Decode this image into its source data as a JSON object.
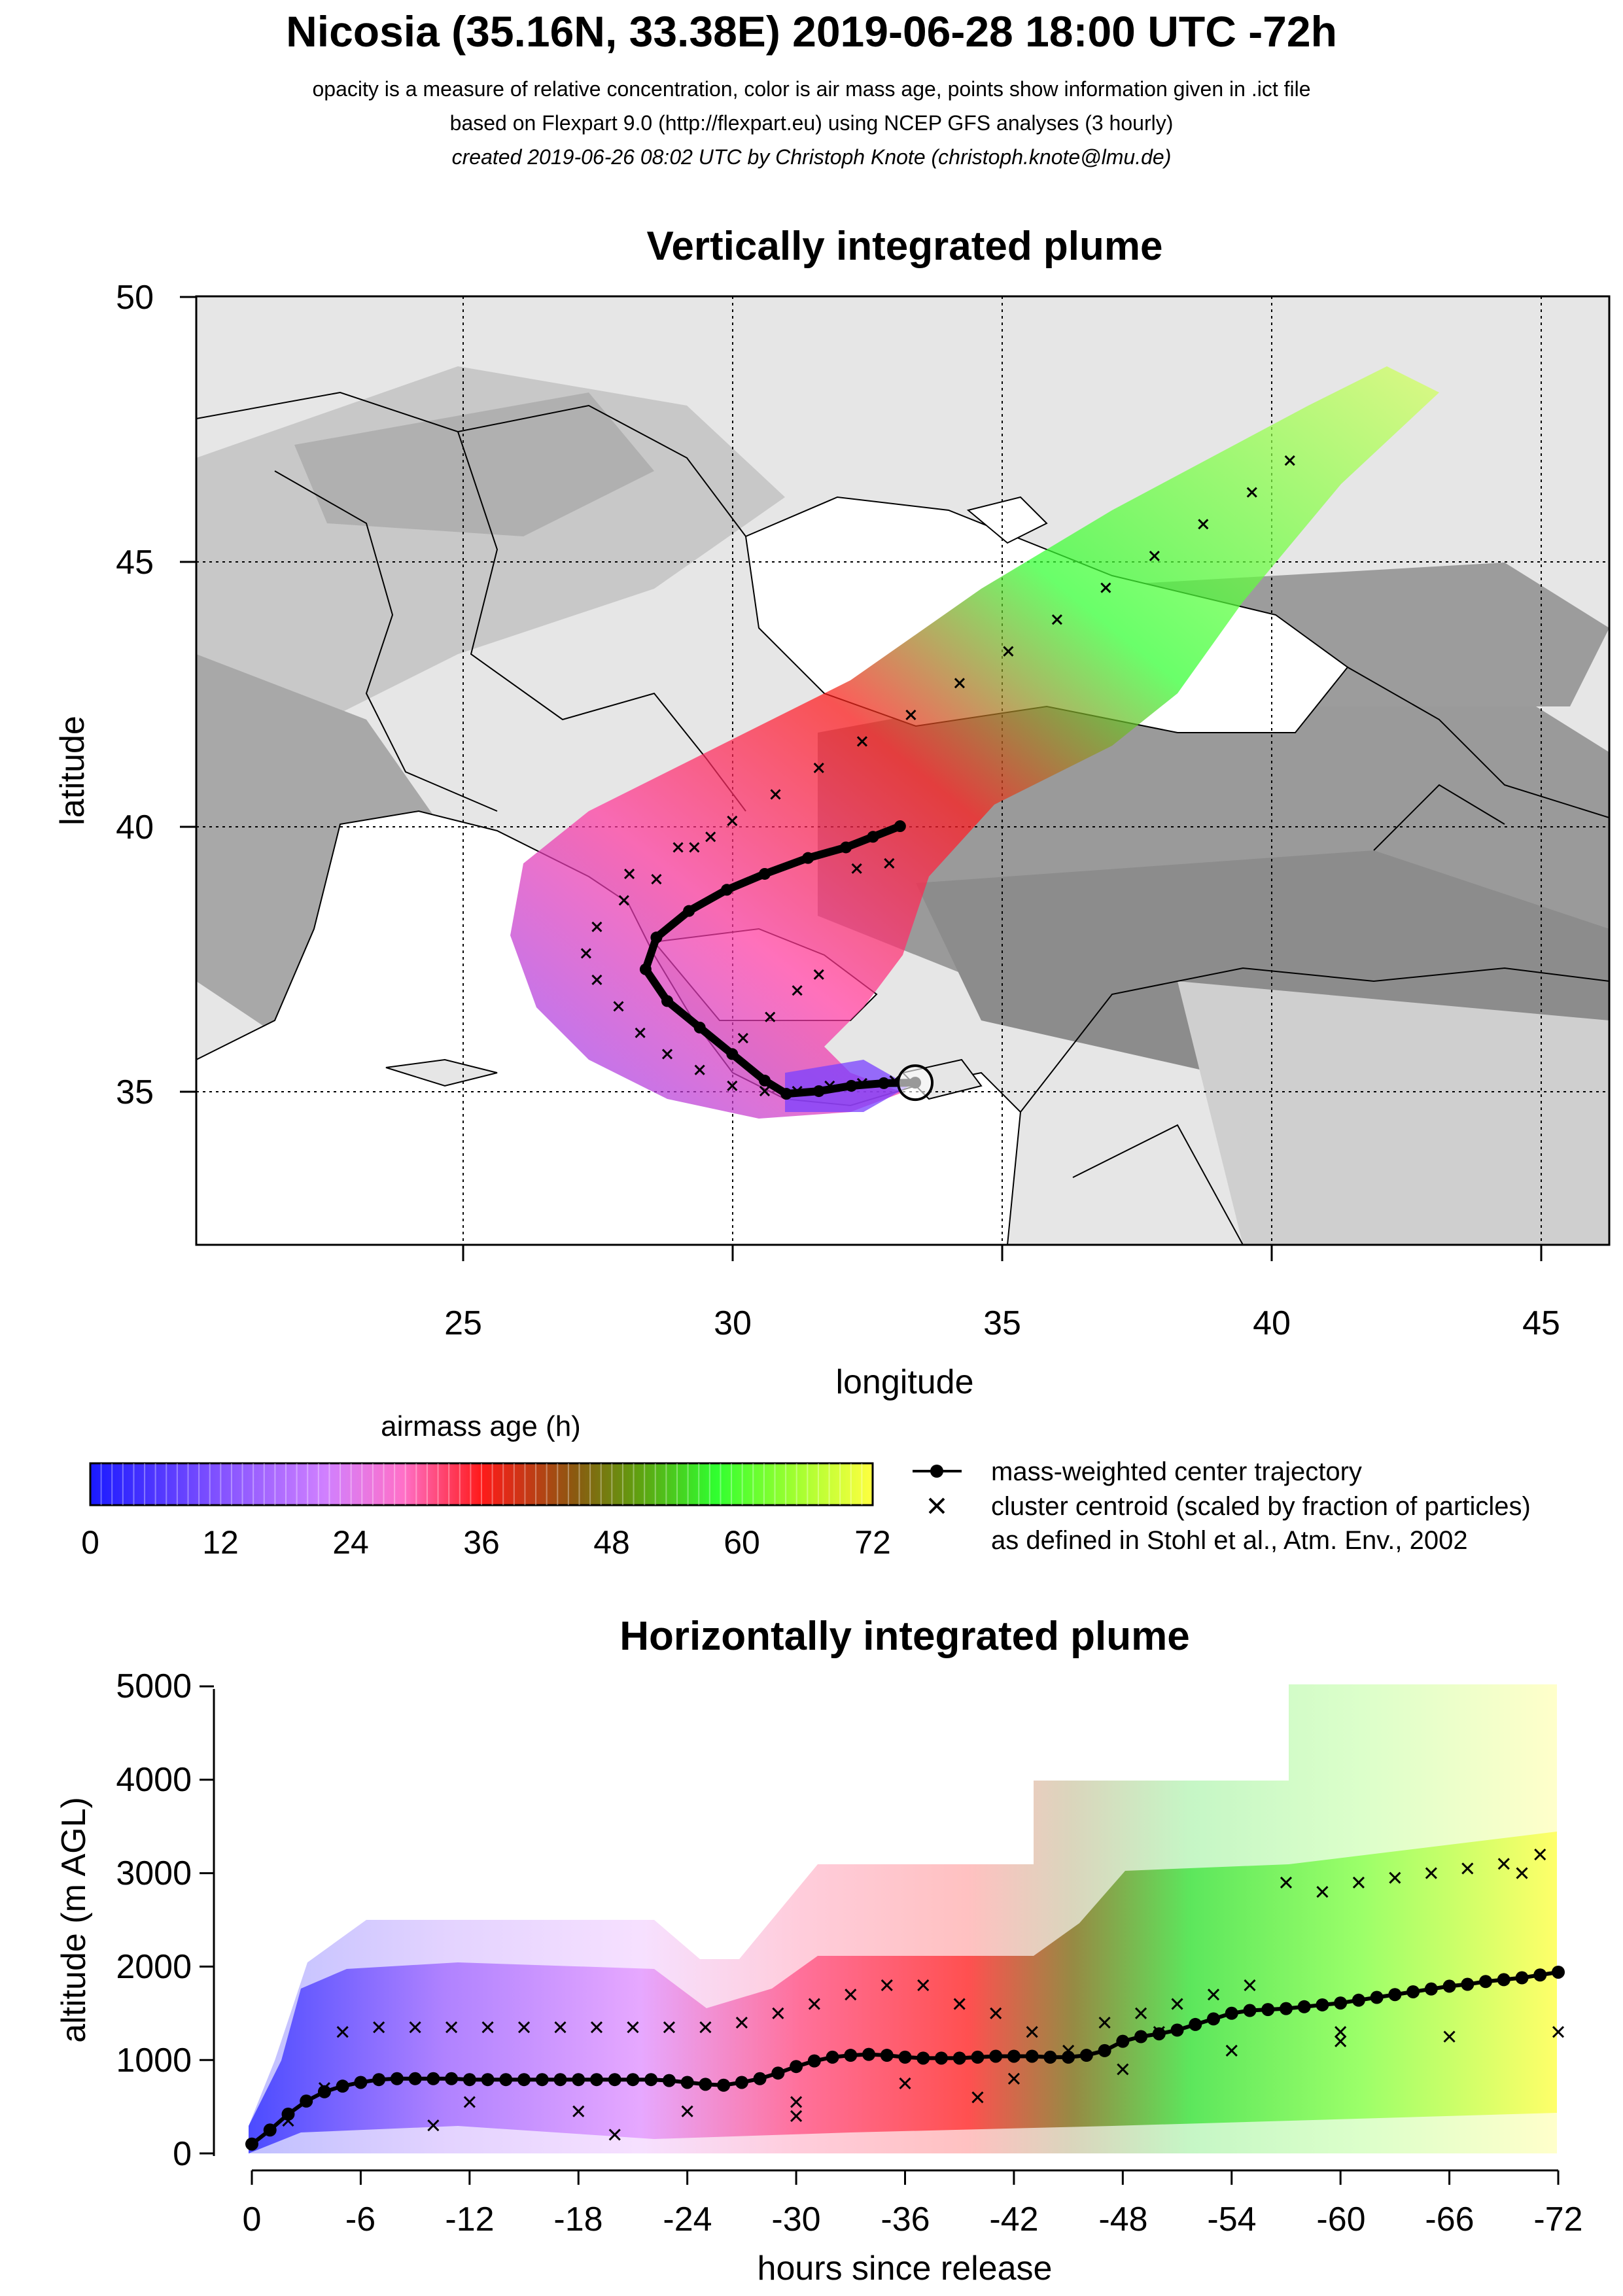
{
  "header": {
    "title": "Nicosia (35.16N, 33.38E) 2019-06-28 18:00 UTC -72h",
    "line1": "opacity is a measure of relative concentration, color is air mass age, points show information given in .ict file",
    "line2": "based on Flexpart 9.0 (http://flexpart.eu) using NCEP GFS analyses (3 hourly)",
    "line3": "created 2019-06-26 08:02 UTC by Christoph Knote (christoph.knote@lmu.de)"
  },
  "colors": {
    "ramp": [
      "#1a1aff",
      "#7a4dff",
      "#c070ff",
      "#ff70c8",
      "#ff3060",
      "#ff1a1a",
      "#8a5a10",
      "#7a8a10",
      "#30ff30",
      "#a0ff30",
      "#ffff40"
    ],
    "terrain_light": "#e6e6e6",
    "terrain_dark": "#8c8c8c",
    "sea": "#ffffff"
  },
  "map": {
    "title": "Vertically integrated plume",
    "xlabel": "longitude",
    "ylabel": "latitude",
    "x_ticks": [
      "25",
      "30",
      "35",
      "40",
      "45"
    ],
    "y_ticks": [
      "35",
      "40",
      "45",
      "50"
    ],
    "release_site": {
      "name": "Nicosia",
      "lon": 33.38,
      "lat": 35.16
    }
  },
  "legend": {
    "colorbar_title": "airmass age (h)",
    "colorbar_ticks": [
      "0",
      "12",
      "24",
      "36",
      "48",
      "60",
      "72"
    ],
    "trajectory_label": "mass-weighted center trajectory",
    "cluster_label": "cluster centroid (scaled by fraction of particles)",
    "cluster_note": "as defined in Stohl et al., Atm. Env., 2002"
  },
  "profile": {
    "title": "Horizontally integrated plume",
    "xlabel": "hours since release",
    "ylabel": "altitude (m AGL)",
    "x_ticks": [
      "0",
      "-6",
      "-12",
      "-18",
      "-24",
      "-30",
      "-36",
      "-42",
      "-48",
      "-54",
      "-60",
      "-66",
      "-72"
    ],
    "y_ticks": [
      "0",
      "1000",
      "2000",
      "3000",
      "4000",
      "5000"
    ]
  },
  "chart_data": [
    {
      "type": "scatter",
      "title": "Vertically integrated plume",
      "xlabel": "longitude",
      "ylabel": "latitude",
      "xlim": [
        20.1,
        46.2
      ],
      "ylim": [
        32.1,
        50.0
      ],
      "grid": true,
      "series": [
        {
          "name": "mass-weighted center trajectory",
          "marker": "dot-line",
          "points": [
            [
              33.38,
              35.16
            ],
            [
              32.8,
              35.15
            ],
            [
              32.2,
              35.1
            ],
            [
              31.6,
              35.0
            ],
            [
              31.0,
              34.95
            ],
            [
              30.6,
              35.2
            ],
            [
              30.0,
              35.7
            ],
            [
              29.4,
              36.2
            ],
            [
              28.8,
              36.7
            ],
            [
              28.4,
              37.3
            ],
            [
              28.6,
              37.9
            ],
            [
              29.2,
              38.4
            ],
            [
              29.9,
              38.8
            ],
            [
              30.6,
              39.1
            ],
            [
              31.4,
              39.4
            ],
            [
              32.1,
              39.6
            ],
            [
              32.6,
              39.8
            ],
            [
              33.1,
              40.0
            ]
          ]
        },
        {
          "name": "cluster centroid (scaled by fraction of particles)",
          "marker": "x",
          "points": [
            [
              33.0,
              35.2
            ],
            [
              32.4,
              35.15
            ],
            [
              31.8,
              35.1
            ],
            [
              31.2,
              35.0
            ],
            [
              30.6,
              35.0
            ],
            [
              30.0,
              35.1
            ],
            [
              29.4,
              35.4
            ],
            [
              28.8,
              35.7
            ],
            [
              28.3,
              36.1
            ],
            [
              27.9,
              36.6
            ],
            [
              27.5,
              37.1
            ],
            [
              27.3,
              37.6
            ],
            [
              27.5,
              38.1
            ],
            [
              28.0,
              38.6
            ],
            [
              28.6,
              39.0
            ],
            [
              29.3,
              39.6
            ],
            [
              30.0,
              40.1
            ],
            [
              30.8,
              40.6
            ],
            [
              31.6,
              41.1
            ],
            [
              32.4,
              41.6
            ],
            [
              33.3,
              42.1
            ],
            [
              34.2,
              42.7
            ],
            [
              35.1,
              43.3
            ],
            [
              36.0,
              43.9
            ],
            [
              36.9,
              44.5
            ],
            [
              37.8,
              45.1
            ],
            [
              38.7,
              45.7
            ],
            [
              39.6,
              46.3
            ],
            [
              40.3,
              46.9
            ],
            [
              30.2,
              36.0
            ],
            [
              30.7,
              36.4
            ],
            [
              31.2,
              36.9
            ],
            [
              31.6,
              37.2
            ],
            [
              32.3,
              39.2
            ],
            [
              32.9,
              39.3
            ],
            [
              29.0,
              39.6
            ],
            [
              29.6,
              39.8
            ],
            [
              28.1,
              39.1
            ]
          ]
        }
      ]
    },
    {
      "type": "area",
      "title": "airmass age (h)",
      "x": [
        0,
        12,
        24,
        36,
        48,
        60,
        72
      ],
      "colors": [
        "#1a1aff",
        "#c070ff",
        "#ff70c8",
        "#ff1a1a",
        "#7a8a10",
        "#30ff30",
        "#ffff40"
      ]
    },
    {
      "type": "line",
      "title": "Horizontally integrated plume",
      "xlabel": "hours since release",
      "ylabel": "altitude (m AGL)",
      "xlim": [
        0,
        -72
      ],
      "ylim": [
        0,
        5000
      ],
      "grid": false,
      "series": [
        {
          "name": "mass-weighted center trajectory",
          "marker": "dot-line",
          "x": [
            0,
            -1,
            -2,
            -3,
            -4,
            -5,
            -6,
            -7,
            -8,
            -9,
            -10,
            -11,
            -12,
            -13,
            -14,
            -15,
            -16,
            -17,
            -18,
            -19,
            -20,
            -21,
            -22,
            -23,
            -24,
            -25,
            -26,
            -27,
            -28,
            -29,
            -30,
            -31,
            -32,
            -33,
            -34,
            -35,
            -36,
            -37,
            -38,
            -39,
            -40,
            -41,
            -42,
            -43,
            -44,
            -45,
            -46,
            -47,
            -48,
            -49,
            -50,
            -51,
            -52,
            -53,
            -54,
            -55,
            -56,
            -57,
            -58,
            -59,
            -60,
            -61,
            -62,
            -63,
            -64,
            -65,
            -66,
            -67,
            -68,
            -69,
            -70,
            -71,
            -72
          ],
          "y": [
            100,
            250,
            420,
            560,
            660,
            720,
            760,
            790,
            800,
            800,
            800,
            800,
            790,
            790,
            790,
            790,
            790,
            790,
            790,
            790,
            790,
            790,
            790,
            780,
            760,
            740,
            730,
            760,
            800,
            860,
            930,
            990,
            1030,
            1050,
            1060,
            1050,
            1030,
            1020,
            1020,
            1020,
            1030,
            1040,
            1040,
            1040,
            1030,
            1030,
            1050,
            1100,
            1200,
            1250,
            1280,
            1320,
            1380,
            1440,
            1500,
            1530,
            1540,
            1550,
            1570,
            1590,
            1610,
            1640,
            1670,
            1700,
            1730,
            1760,
            1790,
            1810,
            1840,
            1860,
            1880,
            1910,
            1940
          ]
        },
        {
          "name": "cluster centroid (scaled by fraction of particles)",
          "marker": "x",
          "x": [
            -2,
            -4,
            -5,
            -7,
            -9,
            -11,
            -13,
            -15,
            -17,
            -19,
            -21,
            -23,
            -25,
            -27,
            -29,
            -31,
            -33,
            -35,
            -37,
            -39,
            -41,
            -43,
            -45,
            -47,
            -49,
            -51,
            -53,
            -55,
            -57,
            -59,
            -61,
            -63,
            -65,
            -67,
            -69,
            -71,
            -12,
            -18,
            -24,
            -30,
            -36,
            -42,
            -48,
            -54,
            -60,
            -66,
            -72,
            -10,
            -20,
            -30,
            -40,
            -50,
            -60,
            -70
          ],
          "y": [
            350,
            700,
            1300,
            1350,
            1350,
            1350,
            1350,
            1350,
            1350,
            1350,
            1350,
            1350,
            1350,
            1400,
            1500,
            1600,
            1700,
            1800,
            1800,
            1600,
            1500,
            1300,
            1100,
            1400,
            1500,
            1600,
            1700,
            1800,
            2900,
            2800,
            2900,
            2950,
            3000,
            3050,
            3100,
            3200,
            550,
            450,
            450,
            550,
            750,
            800,
            900,
            1100,
            1300,
            1250,
            1300,
            300,
            200,
            400,
            600,
            1300,
            1200,
            3000
          ]
        }
      ]
    }
  ]
}
